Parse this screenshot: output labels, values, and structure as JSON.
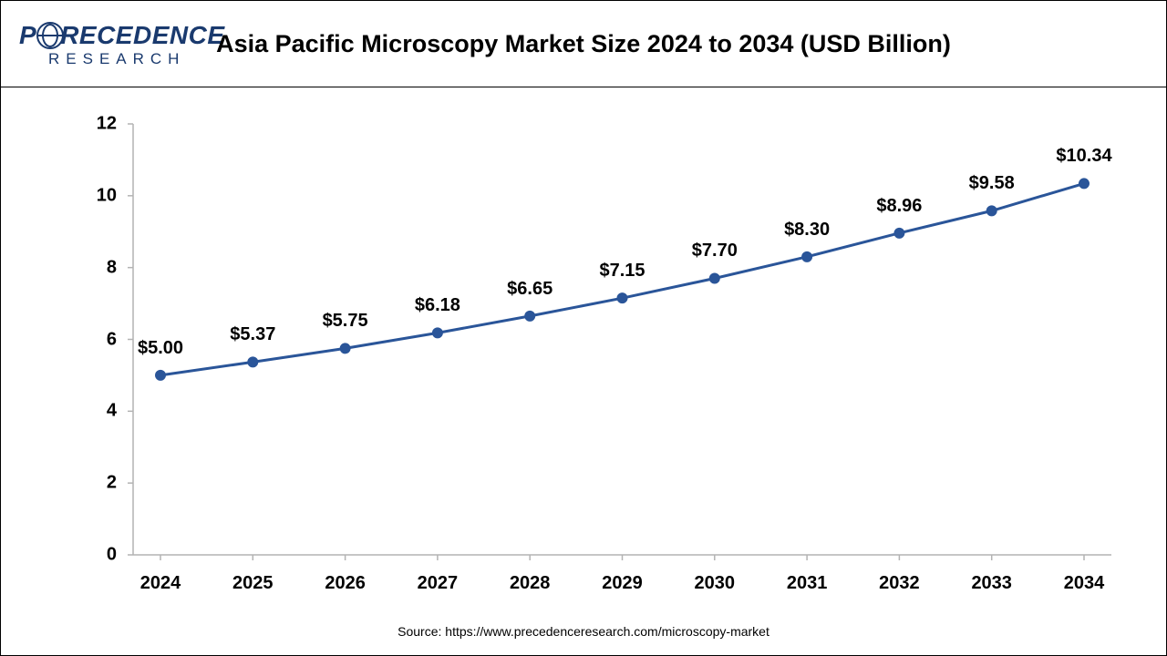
{
  "logo": {
    "top_before": "P",
    "top_after": "RECEDENCE",
    "bottom": "RESEARCH",
    "color": "#1a3a6e"
  },
  "title": "Asia Pacific Microscopy Market Size 2024 to 2034 (USD Billion)",
  "chart": {
    "type": "line",
    "years": [
      "2024",
      "2025",
      "2026",
      "2027",
      "2028",
      "2029",
      "2030",
      "2031",
      "2032",
      "2033",
      "2034"
    ],
    "values": [
      5.0,
      5.37,
      5.75,
      6.18,
      6.65,
      7.15,
      7.7,
      8.3,
      8.96,
      9.58,
      10.34
    ],
    "labels": [
      "$5.00",
      "$5.37",
      "$5.75",
      "$6.18",
      "$6.65",
      "$7.15",
      "$7.70",
      "$8.30",
      "$8.96",
      "$9.58",
      "$10.34"
    ],
    "ylim": [
      0,
      12
    ],
    "ytick_step": 2,
    "yticks": [
      0,
      2,
      4,
      6,
      8,
      10,
      12
    ],
    "line_color": "#2a5599",
    "marker_fill": "#2a5599",
    "marker_stroke": "#2a5599",
    "marker_radius": 5,
    "line_width": 3,
    "axis_color": "#b3b3b3",
    "background_color": "#ffffff",
    "tick_fontsize": 20,
    "label_fontsize": 20,
    "title_fontsize": 27
  },
  "source": "Source: https://www.precedenceresearch.com/microscopy-market"
}
